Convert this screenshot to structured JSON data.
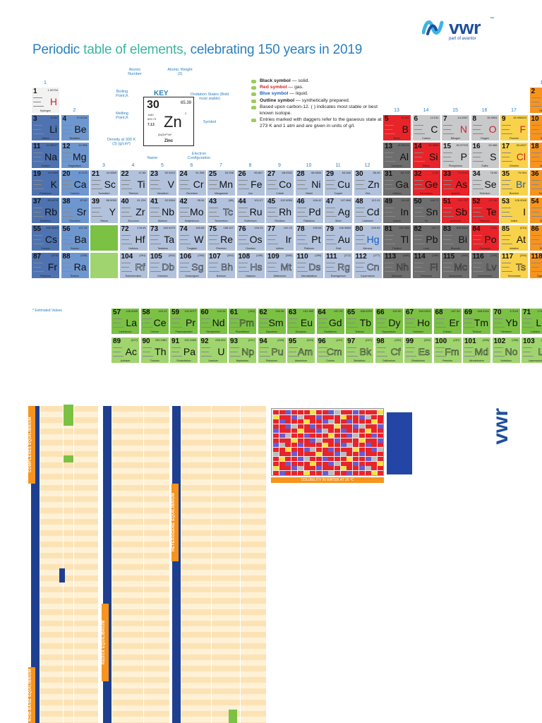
{
  "title": {
    "prefix": "Periodic ",
    "highlight": "table of elements,",
    "suffix": " celebrating 150 years in 2019"
  },
  "logo": {
    "name": "vwr",
    "tm": "™",
    "tagline": "part of avantor"
  },
  "key": {
    "title": "KEY",
    "z": "30",
    "mass": "65.39",
    "symbol": "Zn",
    "name": "Zinc",
    "density": "7.13",
    "bp": "1180",
    "mp": "692.73",
    "oxidation": "2",
    "config": "[Ar]3d¹⁰4s²",
    "labels": {
      "atomic_number": "Atomic Number",
      "atomic_weight": "Atomic Weight (2)",
      "boiling": "Boiling Point,K",
      "melting": "Melting Point,K",
      "density": "Density at 300 K (3) (g/cm³)",
      "name": "Name",
      "oxidation": "Oxidation States (Bold most stable)",
      "symbol": "Symbol",
      "electron": "Electron Configuration"
    }
  },
  "legend": [
    {
      "strong": "Black symbol",
      "rest": " — solid.",
      "cls": "b"
    },
    {
      "strong": "Red symbol",
      "rest": " — gas.",
      "cls": "r"
    },
    {
      "strong": "Blue symbol",
      "rest": " — liquid.",
      "cls": "bl"
    },
    {
      "strong": "Outline symbol",
      "rest": " — synthetically prepared.",
      "cls": "b"
    },
    {
      "strong": "",
      "rest": "Based upon carbon-12. ( ) indicates most stable or best known isotope.",
      "cls": ""
    },
    {
      "strong": "",
      "rest": "Entries marked with daggers refer to the gaseous state at 273 K and 1 atm and are given in units of g/l.",
      "cls": ""
    }
  ],
  "groups": [
    "1",
    "2",
    "3",
    "4",
    "5",
    "6",
    "7",
    "8",
    "9",
    "10",
    "11",
    "12",
    "13",
    "14",
    "15",
    "16",
    "17",
    "18"
  ],
  "estimated_note": "* Estimated Values",
  "elements": [
    {
      "z": "1",
      "s": "H",
      "n": "Hydrogen",
      "m": "1.00794",
      "st": "gas",
      "c": "c-h",
      "r": 0,
      "g": 0
    },
    {
      "z": "2",
      "s": "He",
      "n": "Helium",
      "m": "4.002602",
      "st": "gas",
      "c": "c-ng",
      "r": 0,
      "g": 17
    },
    {
      "z": "3",
      "s": "Li",
      "n": "Lithium",
      "m": "6.941",
      "st": "solid",
      "c": "c-alk",
      "r": 1,
      "g": 0
    },
    {
      "z": "4",
      "s": "Be",
      "n": "Beryllium",
      "m": "9.01218",
      "st": "solid",
      "c": "c-ae",
      "r": 1,
      "g": 1
    },
    {
      "z": "5",
      "s": "B",
      "n": "Boron",
      "m": "10.811",
      "st": "solid",
      "c": "c-red",
      "r": 1,
      "g": 12
    },
    {
      "z": "6",
      "s": "C",
      "n": "Carbon",
      "m": "12.011",
      "st": "solid",
      "c": "c-nml",
      "r": 1,
      "g": 13
    },
    {
      "z": "7",
      "s": "N",
      "n": "Nitrogen",
      "m": "14.0067",
      "st": "gas",
      "c": "c-nml",
      "r": 1,
      "g": 14
    },
    {
      "z": "8",
      "s": "O",
      "n": "Oxygen",
      "m": "15.9994",
      "st": "gas",
      "c": "c-nml",
      "r": 1,
      "g": 15
    },
    {
      "z": "9",
      "s": "F",
      "n": "Fluorine",
      "m": "18.998403",
      "st": "gas",
      "c": "c-hal",
      "r": 1,
      "g": 16
    },
    {
      "z": "10",
      "s": "Ne",
      "n": "Neon",
      "m": "20.1797",
      "st": "gas",
      "c": "c-ng",
      "r": 1,
      "g": 17
    },
    {
      "z": "11",
      "s": "Na",
      "n": "Sodium",
      "m": "22.98977",
      "st": "solid",
      "c": "c-alk",
      "r": 2,
      "g": 0
    },
    {
      "z": "12",
      "s": "Mg",
      "n": "Magnesium",
      "m": "24.305",
      "st": "solid",
      "c": "c-ae",
      "r": 2,
      "g": 1
    },
    {
      "z": "13",
      "s": "Al",
      "n": "Aluminum",
      "m": "26.98154",
      "st": "solid",
      "c": "c-met",
      "r": 2,
      "g": 12
    },
    {
      "z": "14",
      "s": "Si",
      "n": "Silicon",
      "m": "28.0855",
      "st": "solid",
      "c": "c-red",
      "r": 2,
      "g": 13
    },
    {
      "z": "15",
      "s": "P",
      "n": "Phosphorus",
      "m": "30.97376",
      "st": "solid",
      "c": "c-nml",
      "r": 2,
      "g": 14
    },
    {
      "z": "16",
      "s": "S",
      "n": "Sulfur",
      "m": "32.066",
      "st": "solid",
      "c": "c-nml",
      "r": 2,
      "g": 15
    },
    {
      "z": "17",
      "s": "Cl",
      "n": "Chlorine",
      "m": "35.4527",
      "st": "gas",
      "c": "c-hal",
      "r": 2,
      "g": 16
    },
    {
      "z": "18",
      "s": "Ar",
      "n": "Argon",
      "m": "39.948",
      "st": "gas",
      "c": "c-ng",
      "r": 2,
      "g": 17
    },
    {
      "z": "19",
      "s": "K",
      "n": "Potassium",
      "m": "39.0983",
      "st": "solid",
      "c": "c-alk",
      "r": 3,
      "g": 0
    },
    {
      "z": "20",
      "s": "Ca",
      "n": "Calcium",
      "m": "40.078",
      "st": "solid",
      "c": "c-ae",
      "r": 3,
      "g": 1
    },
    {
      "z": "21",
      "s": "Sc",
      "n": "Scandium",
      "m": "44.9559",
      "st": "solid",
      "c": "c-tm",
      "r": 3,
      "g": 2
    },
    {
      "z": "22",
      "s": "Ti",
      "n": "Titanium",
      "m": "47.88",
      "st": "solid",
      "c": "c-tm",
      "r": 3,
      "g": 3
    },
    {
      "z": "23",
      "s": "V",
      "n": "Vanadium",
      "m": "50.9415",
      "st": "solid",
      "c": "c-tm",
      "r": 3,
      "g": 4
    },
    {
      "z": "24",
      "s": "Cr",
      "n": "Chromium",
      "m": "51.996",
      "st": "solid",
      "c": "c-tm",
      "r": 3,
      "g": 5
    },
    {
      "z": "25",
      "s": "Mn",
      "n": "Manganese",
      "m": "54.938",
      "st": "solid",
      "c": "c-tm",
      "r": 3,
      "g": 6
    },
    {
      "z": "26",
      "s": "Fe",
      "n": "Iron",
      "m": "55.847",
      "st": "solid",
      "c": "c-tm",
      "r": 3,
      "g": 7
    },
    {
      "z": "27",
      "s": "Co",
      "n": "Cobalt",
      "m": "58.9332",
      "st": "solid",
      "c": "c-tm",
      "r": 3,
      "g": 8
    },
    {
      "z": "28",
      "s": "Ni",
      "n": "Nickel",
      "m": "58.6934",
      "st": "solid",
      "c": "c-tm",
      "r": 3,
      "g": 9
    },
    {
      "z": "29",
      "s": "Cu",
      "n": "Copper",
      "m": "63.546",
      "st": "solid",
      "c": "c-tm",
      "r": 3,
      "g": 10
    },
    {
      "z": "30",
      "s": "Zn",
      "n": "Zinc",
      "m": "65.39",
      "st": "solid",
      "c": "c-tm",
      "r": 3,
      "g": 11
    },
    {
      "z": "31",
      "s": "Ga",
      "n": "Gallium",
      "m": "69.723",
      "st": "solid",
      "c": "c-met",
      "r": 3,
      "g": 12
    },
    {
      "z": "32",
      "s": "Ge",
      "n": "Germanium",
      "m": "72.61",
      "st": "solid",
      "c": "c-red",
      "r": 3,
      "g": 13
    },
    {
      "z": "33",
      "s": "As",
      "n": "Arsenic",
      "m": "74.9216",
      "st": "solid",
      "c": "c-red",
      "r": 3,
      "g": 14
    },
    {
      "z": "34",
      "s": "Se",
      "n": "Selenium",
      "m": "78.96",
      "st": "solid",
      "c": "c-nml",
      "r": 3,
      "g": 15
    },
    {
      "z": "35",
      "s": "Br",
      "n": "Bromine",
      "m": "79.904",
      "st": "liq",
      "c": "c-hal",
      "r": 3,
      "g": 16
    },
    {
      "z": "36",
      "s": "Kr",
      "n": "Krypton",
      "m": "83.80",
      "st": "gas",
      "c": "c-ng",
      "r": 3,
      "g": 17
    },
    {
      "z": "37",
      "s": "Rb",
      "n": "Rubidium",
      "m": "85.4678",
      "st": "solid",
      "c": "c-alk",
      "r": 4,
      "g": 0
    },
    {
      "z": "38",
      "s": "Sr",
      "n": "Strontium",
      "m": "87.62",
      "st": "solid",
      "c": "c-ae",
      "r": 4,
      "g": 1
    },
    {
      "z": "39",
      "s": "Y",
      "n": "Yttrium",
      "m": "88.9059",
      "st": "solid",
      "c": "c-tm",
      "r": 4,
      "g": 2
    },
    {
      "z": "40",
      "s": "Zr",
      "n": "Zirconium",
      "m": "91.224",
      "st": "solid",
      "c": "c-tm",
      "r": 4,
      "g": 3
    },
    {
      "z": "41",
      "s": "Nb",
      "n": "Niobium",
      "m": "92.9064",
      "st": "solid",
      "c": "c-tm",
      "r": 4,
      "g": 4
    },
    {
      "z": "42",
      "s": "Mo",
      "n": "Molybdenum",
      "m": "95.94",
      "st": "solid",
      "c": "c-tm",
      "r": 4,
      "g": 5
    },
    {
      "z": "43",
      "s": "Tc",
      "n": "Technetium",
      "m": "(98)",
      "st": "out",
      "c": "c-tm",
      "r": 4,
      "g": 6
    },
    {
      "z": "44",
      "s": "Ru",
      "n": "Ruthenium",
      "m": "101.07",
      "st": "solid",
      "c": "c-tm",
      "r": 4,
      "g": 7
    },
    {
      "z": "45",
      "s": "Rh",
      "n": "Rhodium",
      "m": "102.9055",
      "st": "solid",
      "c": "c-tm",
      "r": 4,
      "g": 8
    },
    {
      "z": "46",
      "s": "Pd",
      "n": "Palladium",
      "m": "106.42",
      "st": "solid",
      "c": "c-tm",
      "r": 4,
      "g": 9
    },
    {
      "z": "47",
      "s": "Ag",
      "n": "Silver",
      "m": "107.868",
      "st": "solid",
      "c": "c-tm",
      "r": 4,
      "g": 10
    },
    {
      "z": "48",
      "s": "Cd",
      "n": "Cadmium",
      "m": "112.41",
      "st": "solid",
      "c": "c-tm",
      "r": 4,
      "g": 11
    },
    {
      "z": "49",
      "s": "In",
      "n": "Indium",
      "m": "114.82",
      "st": "solid",
      "c": "c-met",
      "r": 4,
      "g": 12
    },
    {
      "z": "50",
      "s": "Sn",
      "n": "Tin",
      "m": "118.71",
      "st": "solid",
      "c": "c-met",
      "r": 4,
      "g": 13
    },
    {
      "z": "51",
      "s": "Sb",
      "n": "Antimony",
      "m": "121.757",
      "st": "solid",
      "c": "c-red",
      "r": 4,
      "g": 14
    },
    {
      "z": "52",
      "s": "Te",
      "n": "Tellurium",
      "m": "127.60",
      "st": "solid",
      "c": "c-red",
      "r": 4,
      "g": 15
    },
    {
      "z": "53",
      "s": "I",
      "n": "Iodine",
      "m": "126.9045",
      "st": "solid",
      "c": "c-hal",
      "r": 4,
      "g": 16
    },
    {
      "z": "54",
      "s": "Xe",
      "n": "Xenon",
      "m": "131.29",
      "st": "gas",
      "c": "c-ng",
      "r": 4,
      "g": 17
    },
    {
      "z": "55",
      "s": "Cs",
      "n": "Cesium",
      "m": "132.9054",
      "st": "solid",
      "c": "c-alk",
      "r": 5,
      "g": 0
    },
    {
      "z": "56",
      "s": "Ba",
      "n": "Barium",
      "m": "137.33",
      "st": "solid",
      "c": "c-ae",
      "r": 5,
      "g": 1
    },
    {
      "z": "",
      "s": "",
      "n": "",
      "m": "",
      "st": "solid",
      "c": "c-grn",
      "r": 5,
      "g": 2
    },
    {
      "z": "72",
      "s": "Hf",
      "n": "Hafnium",
      "m": "178.49",
      "st": "solid",
      "c": "c-tm",
      "r": 5,
      "g": 3
    },
    {
      "z": "73",
      "s": "Ta",
      "n": "Tantalum",
      "m": "180.9479",
      "st": "solid",
      "c": "c-tm",
      "r": 5,
      "g": 4
    },
    {
      "z": "74",
      "s": "W",
      "n": "Tungsten",
      "m": "183.85",
      "st": "solid",
      "c": "c-tm",
      "r": 5,
      "g": 5
    },
    {
      "z": "75",
      "s": "Re",
      "n": "Rhenium",
      "m": "186.207",
      "st": "solid",
      "c": "c-tm",
      "r": 5,
      "g": 6
    },
    {
      "z": "76",
      "s": "Os",
      "n": "Osmium",
      "m": "190.23",
      "st": "solid",
      "c": "c-tm",
      "r": 5,
      "g": 7
    },
    {
      "z": "77",
      "s": "Ir",
      "n": "Iridium",
      "m": "192.22",
      "st": "solid",
      "c": "c-tm",
      "r": 5,
      "g": 8
    },
    {
      "z": "78",
      "s": "Pt",
      "n": "Platinum",
      "m": "195.08",
      "st": "solid",
      "c": "c-tm",
      "r": 5,
      "g": 9
    },
    {
      "z": "79",
      "s": "Au",
      "n": "Gold",
      "m": "196.9665",
      "st": "solid",
      "c": "c-tm",
      "r": 5,
      "g": 10
    },
    {
      "z": "80",
      "s": "Hg",
      "n": "Mercury",
      "m": "200.59",
      "st": "liq",
      "c": "c-tm",
      "r": 5,
      "g": 11
    },
    {
      "z": "81",
      "s": "Tl",
      "n": "Thallium",
      "m": "204.383",
      "st": "solid",
      "c": "c-met",
      "r": 5,
      "g": 12
    },
    {
      "z": "82",
      "s": "Pb",
      "n": "Lead",
      "m": "207.2",
      "st": "solid",
      "c": "c-met",
      "r": 5,
      "g": 13
    },
    {
      "z": "83",
      "s": "Bi",
      "n": "Bismuth",
      "m": "208.9804",
      "st": "solid",
      "c": "c-met",
      "r": 5,
      "g": 14
    },
    {
      "z": "84",
      "s": "Po",
      "n": "Polonium",
      "m": "(209)",
      "st": "solid",
      "c": "c-red",
      "r": 5,
      "g": 15
    },
    {
      "z": "85",
      "s": "At",
      "n": "Astatine",
      "m": "(210)",
      "st": "solid",
      "c": "c-hal",
      "r": 5,
      "g": 16
    },
    {
      "z": "86",
      "s": "Rn",
      "n": "Radon",
      "m": "(222)",
      "st": "gas",
      "c": "c-ng",
      "r": 5,
      "g": 17
    },
    {
      "z": "87",
      "s": "Fr",
      "n": "Francium",
      "m": "(223)",
      "st": "solid",
      "c": "c-alk",
      "r": 6,
      "g": 0
    },
    {
      "z": "88",
      "s": "Ra",
      "n": "Radium",
      "m": "(226)",
      "st": "solid",
      "c": "c-ae",
      "r": 6,
      "g": 1
    },
    {
      "z": "",
      "s": "",
      "n": "",
      "m": "",
      "st": "solid",
      "c": "c-act",
      "r": 6,
      "g": 2
    },
    {
      "z": "104",
      "s": "Rf",
      "n": "Rutherfordium",
      "m": "(261)",
      "st": "out",
      "c": "c-tm",
      "r": 6,
      "g": 3
    },
    {
      "z": "105",
      "s": "Db",
      "n": "Dubnium",
      "m": "(262)",
      "st": "out",
      "c": "c-tm",
      "r": 6,
      "g": 4
    },
    {
      "z": "106",
      "s": "Sg",
      "n": "Seaborgium",
      "m": "(263)",
      "st": "out",
      "c": "c-tm",
      "r": 6,
      "g": 5
    },
    {
      "z": "107",
      "s": "Bh",
      "n": "Bohrium",
      "m": "(262)",
      "st": "out",
      "c": "c-tm",
      "r": 6,
      "g": 6
    },
    {
      "z": "108",
      "s": "Hs",
      "n": "Hassium",
      "m": "(265)",
      "st": "out",
      "c": "c-tm",
      "r": 6,
      "g": 7
    },
    {
      "z": "109",
      "s": "Mt",
      "n": "Meitnerium",
      "m": "(266)",
      "st": "out",
      "c": "c-tm",
      "r": 6,
      "g": 8
    },
    {
      "z": "110",
      "s": "Ds",
      "n": "Darmstadtium",
      "m": "(269)",
      "st": "out",
      "c": "c-tm",
      "r": 6,
      "g": 9
    },
    {
      "z": "111",
      "s": "Rg",
      "n": "Roentgenium",
      "m": "(272)",
      "st": "out",
      "c": "c-tm",
      "r": 6,
      "g": 10
    },
    {
      "z": "112",
      "s": "Cn",
      "n": "Copernicium",
      "m": "(277)",
      "st": "out",
      "c": "c-tm",
      "r": 6,
      "g": 11
    },
    {
      "z": "113",
      "s": "Nh",
      "n": "Nihonium",
      "m": "(286)",
      "st": "out",
      "c": "c-met",
      "r": 6,
      "g": 12
    },
    {
      "z": "114",
      "s": "Fl",
      "n": "Flerovium",
      "m": "(289)",
      "st": "out",
      "c": "c-met",
      "r": 6,
      "g": 13
    },
    {
      "z": "115",
      "s": "Mc",
      "n": "Moscovium",
      "m": "(289)",
      "st": "out",
      "c": "c-met",
      "r": 6,
      "g": 14
    },
    {
      "z": "116",
      "s": "Lv",
      "n": "Livermorium",
      "m": "(293)",
      "st": "out",
      "c": "c-met",
      "r": 6,
      "g": 15
    },
    {
      "z": "117",
      "s": "Ts",
      "n": "Tennessine",
      "m": "(294)",
      "st": "out",
      "c": "c-hal",
      "r": 6,
      "g": 16
    },
    {
      "z": "118",
      "s": "Og",
      "n": "Oganesson",
      "m": "(294)",
      "st": "out",
      "c": "c-ng",
      "r": 6,
      "g": 17
    }
  ],
  "lanthanides": [
    {
      "z": "57",
      "s": "La",
      "n": "Lanthanum",
      "m": "138.9055"
    },
    {
      "z": "58",
      "s": "Ce",
      "n": "Cerium",
      "m": "140.12"
    },
    {
      "z": "59",
      "s": "Pr",
      "n": "Praseodymium",
      "m": "140.9077"
    },
    {
      "z": "60",
      "s": "Nd",
      "n": "Neodymium",
      "m": "144.24"
    },
    {
      "z": "61",
      "s": "Pm",
      "n": "Promethium",
      "m": "(145)"
    },
    {
      "z": "62",
      "s": "Sm",
      "n": "Samarium",
      "m": "150.36"
    },
    {
      "z": "63",
      "s": "Eu",
      "n": "Europium",
      "m": "151.965"
    },
    {
      "z": "64",
      "s": "Gd",
      "n": "Gadolinium",
      "m": "157.25"
    },
    {
      "z": "65",
      "s": "Tb",
      "n": "Terbium",
      "m": "158.9253"
    },
    {
      "z": "66",
      "s": "Dy",
      "n": "Dysprosium",
      "m": "162.50"
    },
    {
      "z": "67",
      "s": "Ho",
      "n": "Holmium",
      "m": "164.9303"
    },
    {
      "z": "68",
      "s": "Er",
      "n": "Erbium",
      "m": "167.26"
    },
    {
      "z": "69",
      "s": "Tm",
      "n": "Thulium",
      "m": "168.9342"
    },
    {
      "z": "70",
      "s": "Yb",
      "n": "Ytterbium",
      "m": "173.04"
    },
    {
      "z": "71",
      "s": "Lu",
      "n": "Lutetium",
      "m": "174.967"
    }
  ],
  "actinides": [
    {
      "z": "89",
      "s": "Ac",
      "n": "Actinium",
      "m": "(227)"
    },
    {
      "z": "90",
      "s": "Th",
      "n": "Thorium",
      "m": "232.0381"
    },
    {
      "z": "91",
      "s": "Pa",
      "n": "Protactinium",
      "m": "231.0359"
    },
    {
      "z": "92",
      "s": "U",
      "n": "Uranium",
      "m": "238.029"
    },
    {
      "z": "93",
      "s": "Np",
      "n": "Neptunium",
      "m": "(237)"
    },
    {
      "z": "94",
      "s": "Pu",
      "n": "Plutonium",
      "m": "(244)"
    },
    {
      "z": "95",
      "s": "Am",
      "n": "Americium",
      "m": "(243)"
    },
    {
      "z": "96",
      "s": "Cm",
      "n": "Curium",
      "m": "(247)"
    },
    {
      "z": "97",
      "s": "Bk",
      "n": "Berkelium",
      "m": "(247)"
    },
    {
      "z": "98",
      "s": "Cf",
      "n": "Californium",
      "m": "(251)"
    },
    {
      "z": "99",
      "s": "Es",
      "n": "Einsteinium",
      "m": "(252)"
    },
    {
      "z": "100",
      "s": "Fm",
      "n": "Fermium",
      "m": "(257)"
    },
    {
      "z": "101",
      "s": "Md",
      "n": "Mendelevium",
      "m": "(258)"
    },
    {
      "z": "102",
      "s": "No",
      "n": "Nobelium",
      "m": "(259)"
    },
    {
      "z": "103",
      "s": "Lr",
      "n": "Lawrencium",
      "m": "(262)"
    }
  ],
  "bottom_sections": [
    {
      "title": "ACID-BASE EQUILIBRIUM",
      "color": "#f7941d",
      "header_color": "#1e3f8f"
    },
    {
      "title": "REDOX EQUILIBRIUM",
      "color": "#f7941d",
      "header_color": "#1e3f8f"
    },
    {
      "title": "HETEROGENE EQUILIBRIUM",
      "color": "#f7941d",
      "header_color": "#1e3f8f"
    },
    {
      "title": "COMPLEXES EQUILIBRIUM",
      "color": "#f7941d",
      "header_color": "#1e3f8f"
    }
  ],
  "solubility_title": "SOLUBILITY IN WATER AT 25 °C",
  "colors": {
    "accent": "#2a7fbf",
    "highlight": "#3cb4a0",
    "brand": "#1e4f9c"
  }
}
